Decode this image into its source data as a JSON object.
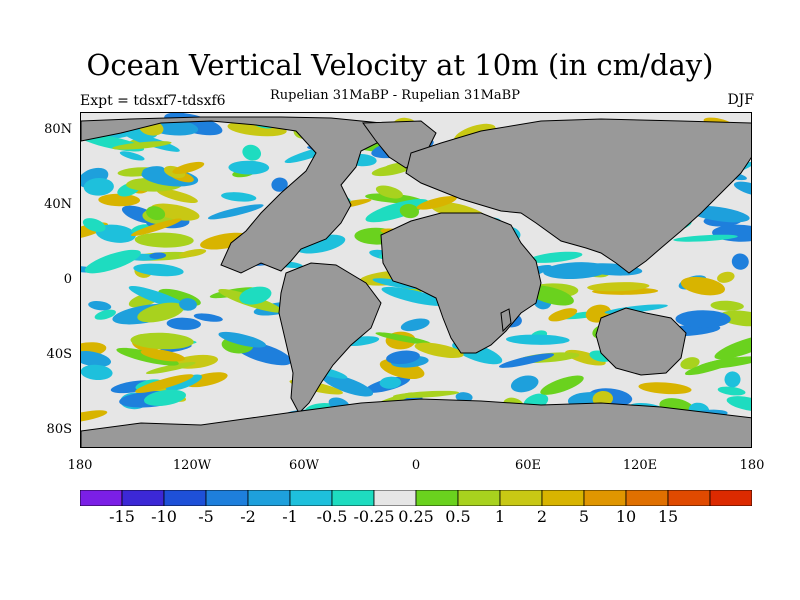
{
  "title": "Ocean Vertical Velocity at 10m (in cm/day)",
  "experiment": "Expt = tdsxf7-tdsxf6",
  "subtitle": "Rupelian  31MaBP - Rupelian  31MaBP",
  "season": "DJF",
  "y_axis_labels": [
    "80N",
    "40N",
    "0",
    "40S",
    "80S"
  ],
  "x_axis_labels": [
    "180",
    "120W",
    "60W",
    "0",
    "60E",
    "120E",
    "180"
  ],
  "colorbar": {
    "colors": [
      "#7b1fe6",
      "#3c28d6",
      "#1e50d8",
      "#1e7fdc",
      "#1ea0dc",
      "#1ec0dc",
      "#1edcc0",
      "#e6e6e6",
      "#6ad21e",
      "#a8d21e",
      "#c8c814",
      "#d8b400",
      "#e09600",
      "#e07000",
      "#e04a00",
      "#dc2a00"
    ],
    "labels": [
      "-15",
      "-10",
      "-5",
      "-2",
      "-1",
      "-0.5",
      "-0.25",
      "0.25",
      "0.5",
      "1",
      "2",
      "5",
      "10",
      "15"
    ]
  },
  "map": {
    "land_color": "#999999",
    "ocean_neutral_color": "#e6e6e6"
  }
}
